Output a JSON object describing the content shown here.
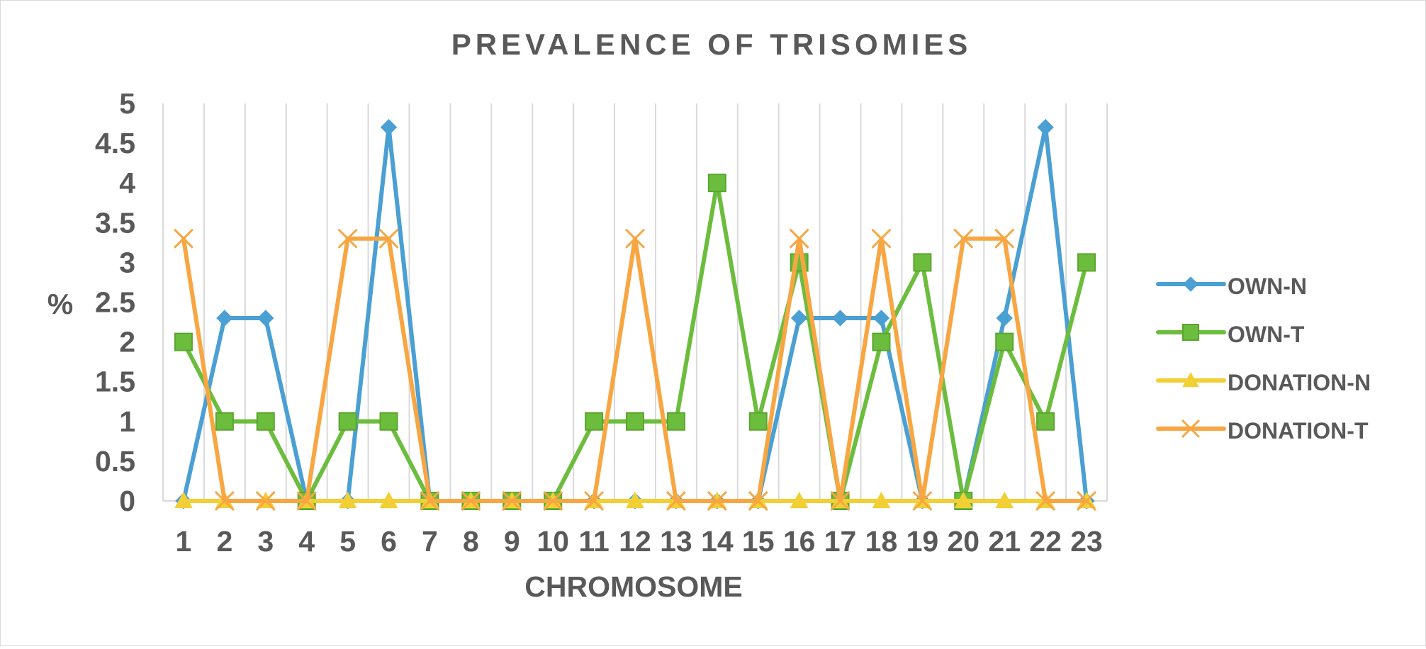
{
  "chart_data": {
    "type": "line",
    "title": "PREVALENCE OF TRISOMIES",
    "xlabel": "CHROMOSOME",
    "ylabel": "%",
    "ylim": [
      0,
      5
    ],
    "yticks": [
      "0",
      "0.5",
      "1",
      "1.5",
      "2",
      "2.5",
      "3",
      "3.5",
      "4",
      "4.5",
      "5"
    ],
    "categories": [
      "1",
      "2",
      "3",
      "4",
      "5",
      "6",
      "7",
      "8",
      "9",
      "10",
      "11",
      "12",
      "13",
      "14",
      "15",
      "16",
      "17",
      "18",
      "19",
      "20",
      "21",
      "22",
      "23"
    ],
    "tick_labels": [
      "1",
      "2",
      "3",
      "4",
      "5",
      "6",
      "7",
      "8",
      "9",
      "10",
      "11",
      "12",
      "13",
      "14",
      "15",
      "16",
      "17",
      "18",
      "19",
      "20",
      "21",
      "22",
      "23"
    ],
    "grid": "vertical",
    "legend_position": "right",
    "series": [
      {
        "name": "OWN-N",
        "color": "#4a9fd3",
        "marker": "diamond",
        "values": [
          0,
          2.3,
          2.3,
          0,
          0,
          4.7,
          0,
          0,
          0,
          0,
          0,
          0,
          0,
          0,
          0,
          2.3,
          2.3,
          2.3,
          0,
          0,
          2.3,
          4.7,
          0
        ]
      },
      {
        "name": "OWN-T",
        "color": "#6cbd3d",
        "marker": "square",
        "values": [
          2,
          1,
          1,
          0,
          1,
          1,
          0,
          0,
          0,
          0,
          1,
          1,
          1,
          4,
          1,
          3,
          0,
          2,
          3,
          0,
          2,
          1,
          3
        ]
      },
      {
        "name": "DONATION-N",
        "color": "#f2cf34",
        "marker": "triangle",
        "values": [
          0,
          0,
          0,
          0,
          0,
          0,
          0,
          0,
          0,
          0,
          0,
          0,
          0,
          0,
          0,
          0,
          0,
          0,
          0,
          0,
          0,
          0,
          0
        ]
      },
      {
        "name": "DONATION-T",
        "color": "#f8a642",
        "marker": "x",
        "values": [
          3.3,
          0,
          0,
          0,
          3.3,
          3.3,
          0,
          0,
          0,
          0,
          0,
          3.3,
          0,
          0,
          0,
          3.3,
          0,
          3.3,
          0,
          3.3,
          3.3,
          0,
          0
        ]
      }
    ]
  }
}
